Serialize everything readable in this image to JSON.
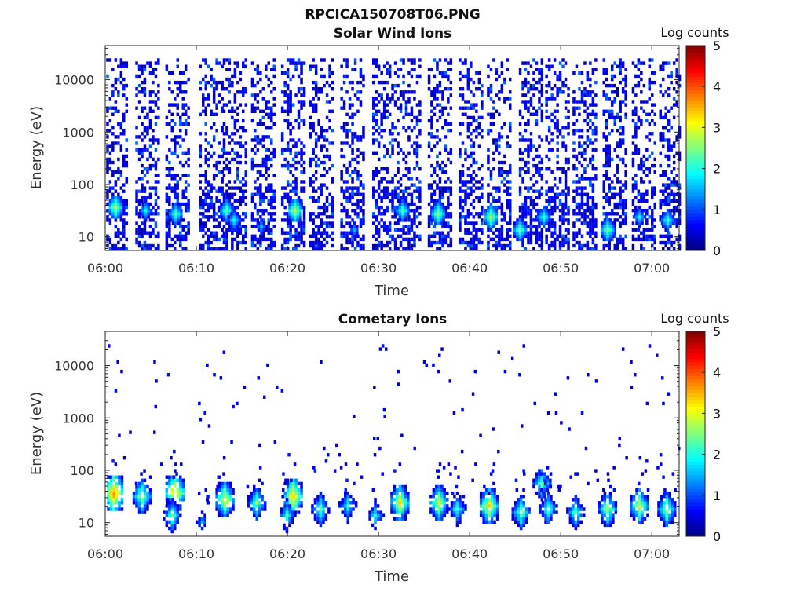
{
  "figure": {
    "title": "RPCICA150708T06.PNG"
  },
  "chart_data": [
    {
      "type": "heatmap",
      "title": "Solar Wind Ions",
      "xlabel": "Time",
      "ylabel": "Energy (eV)",
      "x_ticks": [
        "06:00",
        "06:10",
        "06:20",
        "06:30",
        "06:40",
        "06:50",
        "07:00"
      ],
      "x_tick_minutes": [
        0,
        10,
        20,
        30,
        40,
        50,
        60
      ],
      "xlim_minutes": [
        0,
        63
      ],
      "yscale": "log",
      "ylim": [
        5.5,
        45000
      ],
      "y_ticks": [
        10,
        100,
        1000,
        10000
      ],
      "y_tick_labels": [
        "10",
        "100",
        "1000",
        "10000"
      ],
      "colorbar": {
        "label": "Log counts",
        "range": [
          0,
          5
        ],
        "ticks": [
          "0",
          "1",
          "2",
          "3",
          "4",
          "5"
        ],
        "colormap": "jet"
      },
      "sweep_minutes": [
        1.0,
        4.5,
        7.8,
        11.5,
        14.1,
        17.2,
        20.5,
        23.6,
        27.0,
        30.5,
        33.2,
        36.6,
        40.0,
        43.1,
        46.6,
        49.5,
        52.5,
        55.8,
        59.0,
        62.0
      ],
      "peaks": [
        {
          "t": 1.0,
          "e": 35,
          "v": 2.7
        },
        {
          "t": 4.3,
          "e": 30,
          "v": 1.9
        },
        {
          "t": 7.6,
          "e": 27,
          "v": 2.3
        },
        {
          "t": 13.2,
          "e": 30,
          "v": 2.4
        },
        {
          "t": 14.0,
          "e": 20,
          "v": 2.0
        },
        {
          "t": 17.0,
          "e": 16,
          "v": 1.6
        },
        {
          "t": 20.7,
          "e": 32,
          "v": 2.8
        },
        {
          "t": 27.2,
          "e": 14,
          "v": 1.5
        },
        {
          "t": 32.5,
          "e": 30,
          "v": 2.3
        },
        {
          "t": 36.4,
          "e": 28,
          "v": 2.6
        },
        {
          "t": 42.2,
          "e": 25,
          "v": 2.7
        },
        {
          "t": 45.4,
          "e": 13,
          "v": 2.4
        },
        {
          "t": 48.0,
          "e": 25,
          "v": 2.2
        },
        {
          "t": 55.0,
          "e": 13,
          "v": 2.5
        },
        {
          "t": 58.5,
          "e": 25,
          "v": 1.9
        },
        {
          "t": 61.6,
          "e": 20,
          "v": 2.2
        }
      ]
    },
    {
      "type": "heatmap",
      "title": "Cometary Ions",
      "xlabel": "Time",
      "ylabel": "Energy (eV)",
      "x_ticks": [
        "06:00",
        "06:10",
        "06:20",
        "06:30",
        "06:40",
        "06:50",
        "07:00"
      ],
      "x_tick_minutes": [
        0,
        10,
        20,
        30,
        40,
        50,
        60
      ],
      "xlim_minutes": [
        0,
        63
      ],
      "yscale": "log",
      "ylim": [
        5.5,
        45000
      ],
      "y_ticks": [
        10,
        100,
        1000,
        10000
      ],
      "y_tick_labels": [
        "10",
        "100",
        "1000",
        "10000"
      ],
      "colorbar": {
        "label": "Log counts",
        "range": [
          0,
          5
        ],
        "ticks": [
          "0",
          "1",
          "2",
          "3",
          "4",
          "5"
        ],
        "colormap": "jet"
      },
      "blobs": [
        {
          "t": 0.8,
          "e": 35,
          "v": 3.8
        },
        {
          "t": 3.9,
          "e": 30,
          "v": 2.8
        },
        {
          "t": 7.5,
          "e": 35,
          "v": 3.6
        },
        {
          "t": 7.2,
          "e": 14,
          "v": 2.4
        },
        {
          "t": 10.5,
          "e": 10,
          "v": 1.5
        },
        {
          "t": 13.0,
          "e": 28,
          "v": 3.2
        },
        {
          "t": 16.5,
          "e": 25,
          "v": 2.6
        },
        {
          "t": 20.5,
          "e": 32,
          "v": 3.4
        },
        {
          "t": 19.8,
          "e": 14,
          "v": 2.2
        },
        {
          "t": 23.5,
          "e": 18,
          "v": 2.4
        },
        {
          "t": 26.5,
          "e": 22,
          "v": 2.2
        },
        {
          "t": 29.5,
          "e": 14,
          "v": 2.0
        },
        {
          "t": 32.2,
          "e": 25,
          "v": 3.2
        },
        {
          "t": 36.5,
          "e": 25,
          "v": 3.0
        },
        {
          "t": 38.5,
          "e": 18,
          "v": 2.2
        },
        {
          "t": 42.0,
          "e": 22,
          "v": 3.3
        },
        {
          "t": 45.5,
          "e": 16,
          "v": 2.6
        },
        {
          "t": 47.8,
          "e": 60,
          "v": 2.5
        },
        {
          "t": 48.5,
          "e": 18,
          "v": 2.4
        },
        {
          "t": 51.5,
          "e": 16,
          "v": 2.4
        },
        {
          "t": 55.0,
          "e": 18,
          "v": 2.8
        },
        {
          "t": 58.5,
          "e": 22,
          "v": 3.0
        },
        {
          "t": 61.5,
          "e": 18,
          "v": 2.8
        }
      ]
    }
  ]
}
